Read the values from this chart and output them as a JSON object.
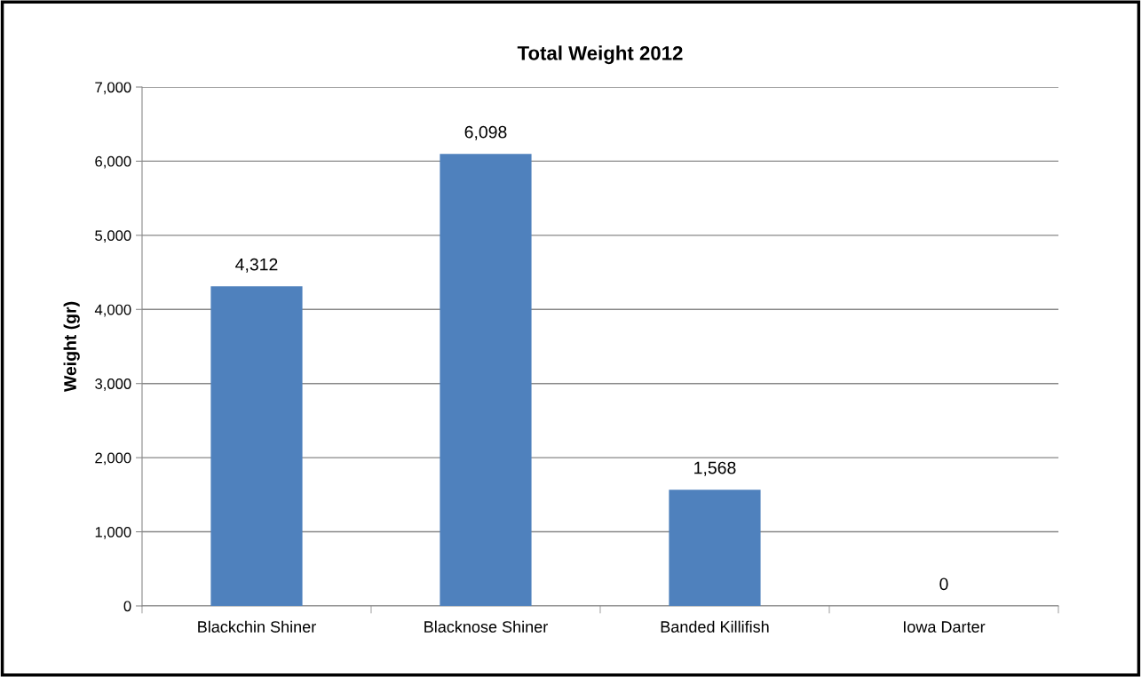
{
  "chart_data": {
    "type": "bar",
    "title": "Total Weight 2012",
    "ylabel": "Weight (gr)",
    "categories": [
      "Blackchin Shiner",
      "Blacknose Shiner",
      "Banded Killifish",
      "Iowa Darter"
    ],
    "values": [
      4312,
      6098,
      1568,
      0
    ],
    "value_labels": [
      "4,312",
      "6,098",
      "1,568",
      "0"
    ],
    "color": "#4f81bd",
    "ylim": [
      0,
      7000
    ],
    "yticks": [
      {
        "value": 0,
        "label": "0"
      },
      {
        "value": 1000,
        "label": "1,000"
      },
      {
        "value": 2000,
        "label": "2,000"
      },
      {
        "value": 3000,
        "label": "3,000"
      },
      {
        "value": 4000,
        "label": "4,000"
      },
      {
        "value": 5000,
        "label": "5,000"
      },
      {
        "value": 6000,
        "label": "6,000"
      },
      {
        "value": 7000,
        "label": "7,000"
      }
    ],
    "grid": "y",
    "legend": false
  }
}
